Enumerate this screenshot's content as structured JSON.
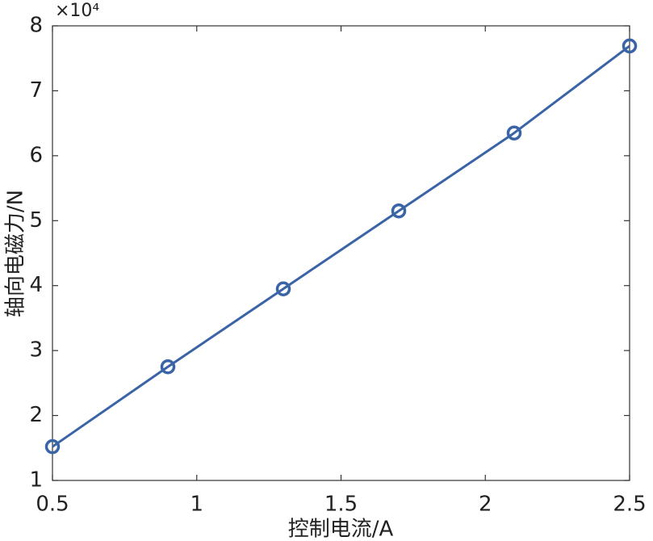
{
  "chart_data": {
    "type": "line",
    "x_label": "控制电流/A",
    "y_label": "轴向电磁力/N",
    "y_scale_label": "×10⁴",
    "x": [
      0.5,
      0.9,
      1.3,
      1.7,
      2.1,
      2.5
    ],
    "series": [
      {
        "color": "#3a64a6",
        "values": [
          1.52,
          2.75,
          3.95,
          5.15,
          6.35,
          7.69
        ]
      }
    ],
    "xlim": [
      0.5,
      2.5
    ],
    "xticks": [
      0.5,
      1,
      1.5,
      2,
      2.5
    ],
    "ylim": [
      1,
      8
    ],
    "yticks": [
      1,
      2,
      3,
      4,
      5,
      6,
      7,
      8
    ],
    "grid": false
  }
}
